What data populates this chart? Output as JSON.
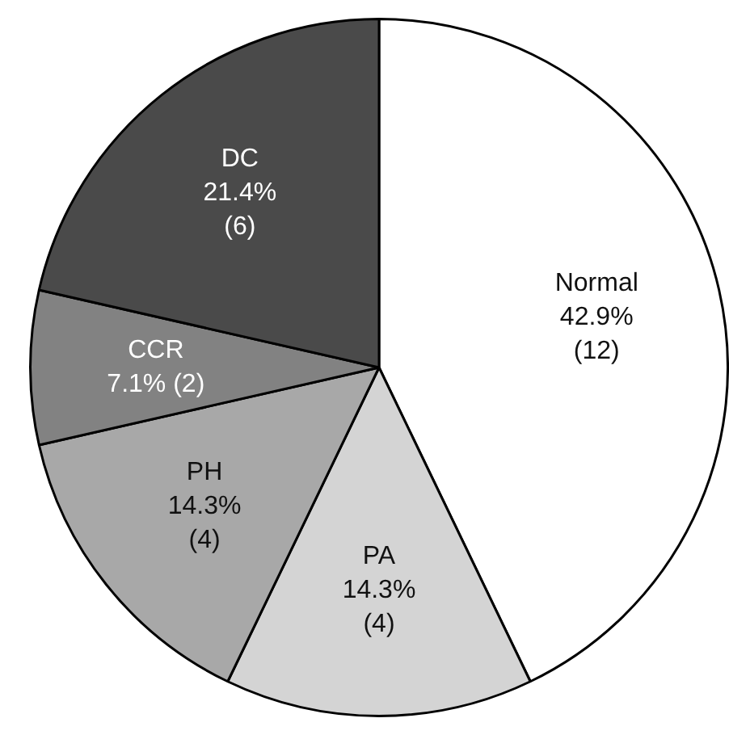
{
  "chart_data": {
    "type": "pie",
    "categories": [
      "Normal",
      "PA",
      "PH",
      "CCR",
      "DC"
    ],
    "values": [
      12,
      4,
      4,
      2,
      6
    ],
    "colors": [
      "#ffffff",
      "#d4d4d4",
      "#a8a8a8",
      "#828282",
      "#4a4a4a"
    ],
    "value_labels": [
      "42.9%\n(12)",
      "14.3%\n(4)",
      "14.3%\n(4)",
      "7.1% (2)",
      "21.4%\n(6)"
    ],
    "legend": false
  }
}
